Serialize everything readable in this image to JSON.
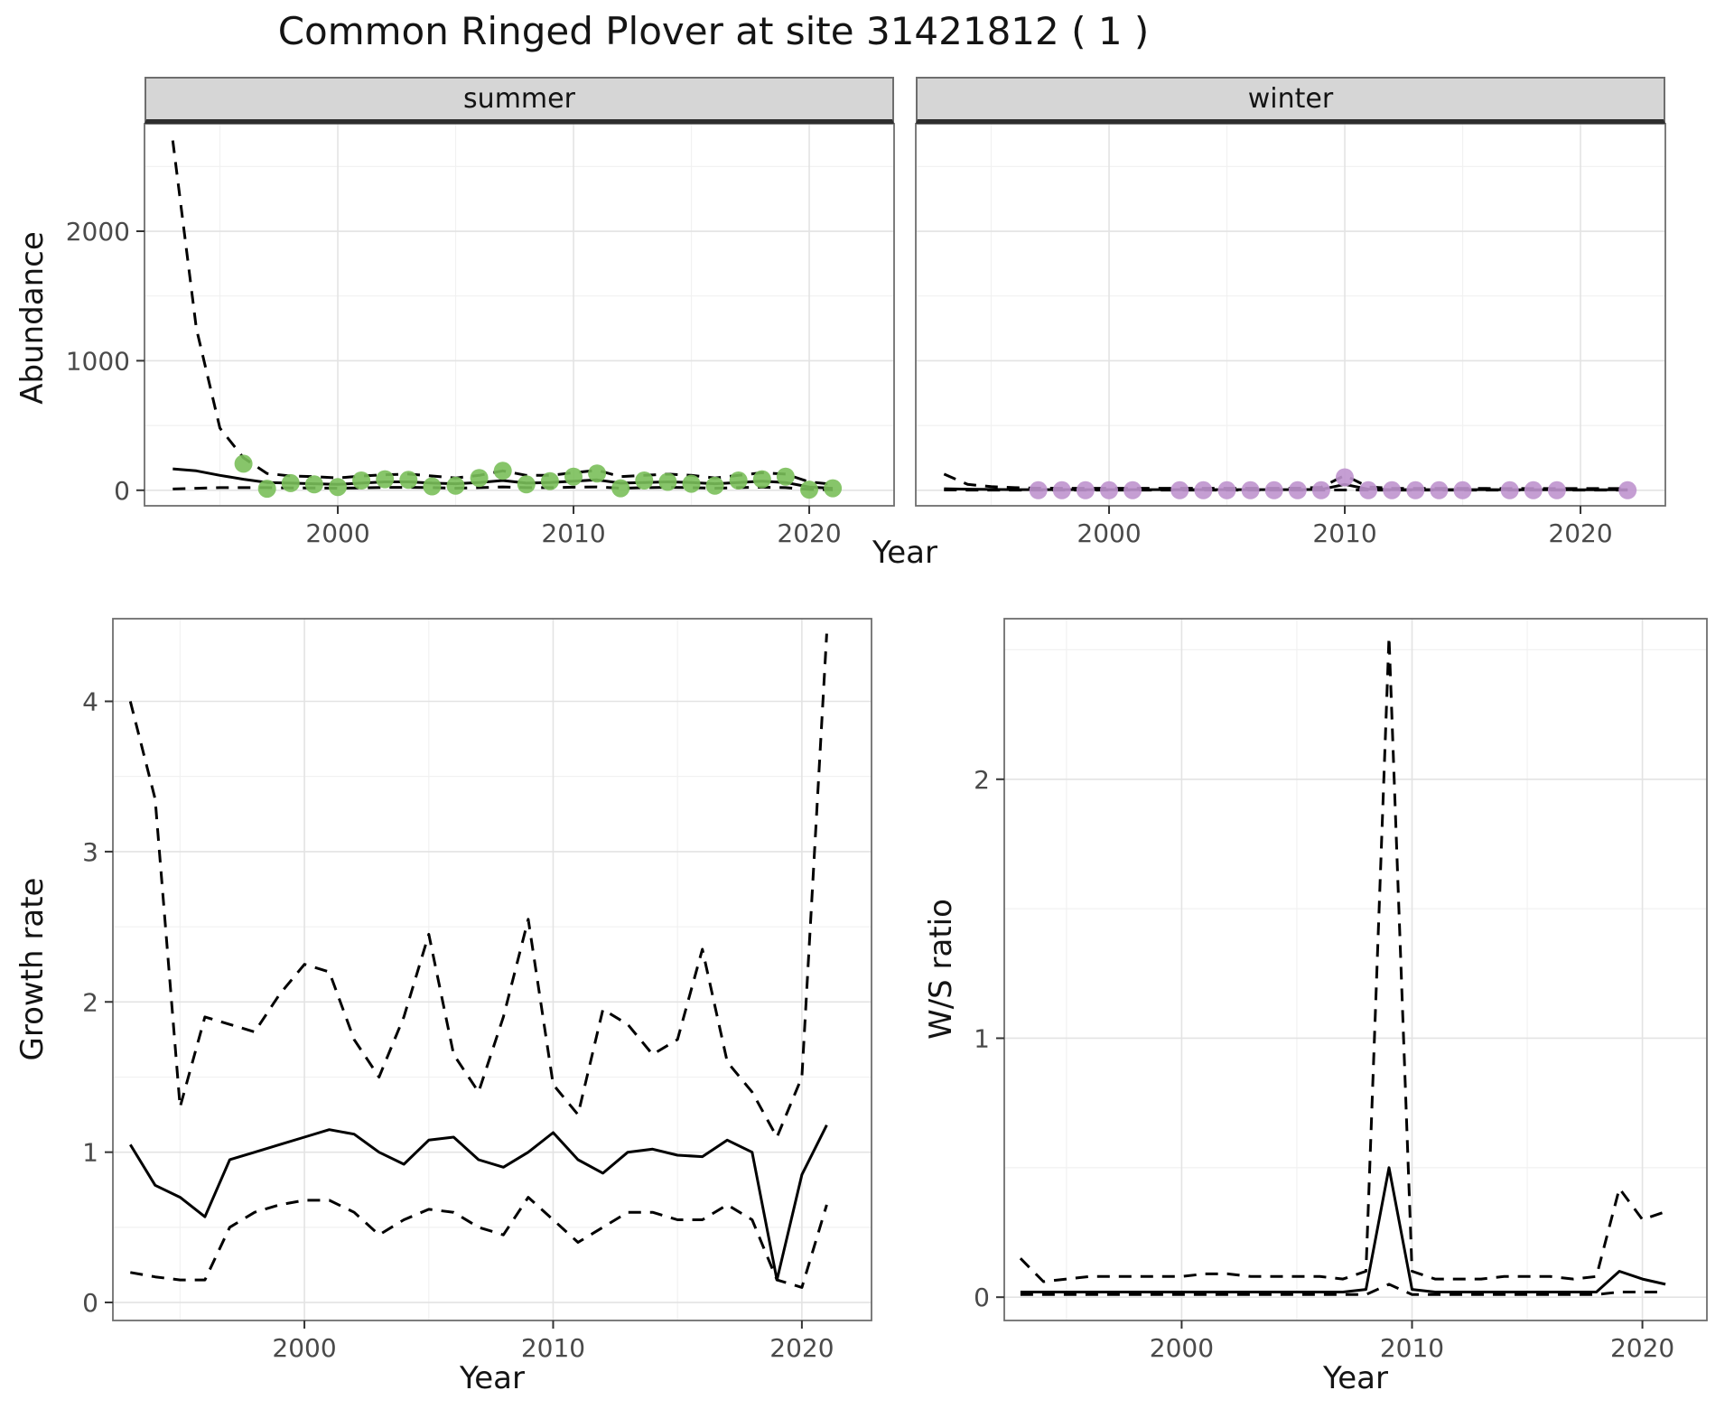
{
  "title": "Common Ringed Plover at site 31421812 ( 1 )",
  "axes": {
    "top_x_label": "Year",
    "top_y_label": "Abundance",
    "growth_x_label": "Year",
    "growth_y_label": "Growth rate",
    "ws_x_label": "Year",
    "ws_y_label": "W/S ratio"
  },
  "facets": {
    "summer": "summer",
    "winter": "winter"
  },
  "colors": {
    "line": "#000000",
    "summer_points": "#7abf5a",
    "winter_points": "#bf94ce",
    "grid_major": "#e3e3e3",
    "grid_minor": "#f1f1f1",
    "panel_border": "#6e6e6e",
    "tick": "#333333",
    "tick_label": "#4a4a4a",
    "strip_background": "#d6d6d6"
  },
  "chart_data": [
    {
      "id": "abundance-summer",
      "type": "line",
      "facet": "summer",
      "xlim": [
        1991.8,
        2023.6
      ],
      "ylim": [
        -120,
        2830
      ],
      "xticks": [
        2000,
        2010,
        2020
      ],
      "yticks": [
        0,
        1000,
        2000
      ],
      "x_minor": [
        1995,
        2005,
        2015
      ],
      "y_minor": [
        500,
        1500,
        2500
      ],
      "series": [
        {
          "name": "ci-upper",
          "style": "dashed",
          "x": [
            1993,
            1994,
            1995,
            1996,
            1997,
            1998,
            1999,
            2000,
            2001,
            2002,
            2003,
            2004,
            2005,
            2006,
            2007,
            2008,
            2009,
            2010,
            2011,
            2012,
            2013,
            2014,
            2015,
            2016,
            2017,
            2018,
            2019,
            2020,
            2021
          ],
          "y": [
            2700,
            1250,
            480,
            250,
            130,
            110,
            105,
            95,
            110,
            120,
            125,
            110,
            95,
            115,
            150,
            115,
            115,
            135,
            155,
            105,
            115,
            125,
            115,
            95,
            115,
            135,
            125,
            65,
            45
          ]
        },
        {
          "name": "ci-lower",
          "style": "dashed",
          "x": [
            1993,
            1994,
            1995,
            1996,
            1997,
            1998,
            1999,
            2000,
            2001,
            2002,
            2003,
            2004,
            2005,
            2006,
            2007,
            2008,
            2009,
            2010,
            2011,
            2012,
            2013,
            2014,
            2015,
            2016,
            2017,
            2018,
            2019,
            2020,
            2021
          ],
          "y": [
            10,
            15,
            20,
            20,
            20,
            18,
            18,
            16,
            18,
            22,
            22,
            20,
            16,
            20,
            26,
            20,
            20,
            24,
            26,
            16,
            20,
            22,
            20,
            16,
            20,
            24,
            20,
            6,
            4
          ]
        },
        {
          "name": "median",
          "style": "solid",
          "x": [
            1993,
            1994,
            1995,
            1996,
            1997,
            1998,
            1999,
            2000,
            2001,
            2002,
            2003,
            2004,
            2005,
            2006,
            2007,
            2008,
            2009,
            2010,
            2011,
            2012,
            2013,
            2014,
            2015,
            2016,
            2017,
            2018,
            2019,
            2020,
            2021
          ],
          "y": [
            165,
            150,
            115,
            85,
            60,
            55,
            50,
            45,
            55,
            65,
            65,
            55,
            50,
            60,
            75,
            55,
            60,
            70,
            80,
            55,
            60,
            65,
            60,
            50,
            60,
            70,
            60,
            25,
            15
          ]
        },
        {
          "name": "observed",
          "style": "points",
          "color": "#7abf5a",
          "x": [
            1996,
            1997,
            1998,
            1999,
            2000,
            2001,
            2002,
            2003,
            2004,
            2005,
            2006,
            2007,
            2008,
            2009,
            2010,
            2011,
            2012,
            2013,
            2014,
            2015,
            2016,
            2017,
            2018,
            2019,
            2020,
            2021
          ],
          "y": [
            205,
            12,
            55,
            45,
            25,
            75,
            85,
            80,
            30,
            35,
            95,
            150,
            45,
            70,
            105,
            130,
            15,
            75,
            65,
            50,
            35,
            75,
            85,
            105,
            5,
            15
          ]
        }
      ]
    },
    {
      "id": "abundance-winter",
      "type": "line",
      "facet": "winter",
      "xlim": [
        1991.8,
        2023.6
      ],
      "ylim": [
        -120,
        2830
      ],
      "xticks": [
        2000,
        2010,
        2020
      ],
      "yticks": [
        0,
        1000,
        2000
      ],
      "x_minor": [
        1995,
        2005,
        2015
      ],
      "y_minor": [
        500,
        1500,
        2500
      ],
      "series": [
        {
          "name": "ci-upper",
          "style": "dashed",
          "x": [
            1993,
            1994,
            1995,
            1996,
            1997,
            1998,
            1999,
            2000,
            2001,
            2002,
            2003,
            2004,
            2005,
            2006,
            2007,
            2008,
            2009,
            2010,
            2011,
            2012,
            2013,
            2014,
            2015,
            2016,
            2017,
            2018,
            2019,
            2020,
            2021,
            2022
          ],
          "y": [
            125,
            45,
            28,
            20,
            16,
            15,
            15,
            15,
            15,
            15,
            15,
            15,
            15,
            15,
            15,
            16,
            22,
            115,
            26,
            15,
            14,
            14,
            14,
            14,
            13,
            13,
            13,
            13,
            13,
            13
          ]
        },
        {
          "name": "ci-lower",
          "style": "dashed",
          "x": [
            1993,
            1994,
            1995,
            1996,
            1997,
            1998,
            1999,
            2000,
            2001,
            2002,
            2003,
            2004,
            2005,
            2006,
            2007,
            2008,
            2009,
            2010,
            2011,
            2012,
            2013,
            2014,
            2015,
            2016,
            2017,
            2018,
            2019,
            2020,
            2021,
            2022
          ],
          "y": [
            2,
            1,
            1,
            1,
            1,
            1,
            1,
            1,
            1,
            1,
            1,
            1,
            1,
            1,
            1,
            1,
            1,
            2,
            1,
            1,
            1,
            1,
            1,
            1,
            1,
            1,
            1,
            1,
            1,
            1
          ]
        },
        {
          "name": "median",
          "style": "solid",
          "x": [
            1993,
            1994,
            1995,
            1996,
            1997,
            1998,
            1999,
            2000,
            2001,
            2002,
            2003,
            2004,
            2005,
            2006,
            2007,
            2008,
            2009,
            2010,
            2011,
            2012,
            2013,
            2014,
            2015,
            2016,
            2017,
            2018,
            2019,
            2020,
            2021,
            2022
          ],
          "y": [
            12,
            8,
            6,
            5,
            5,
            5,
            5,
            5,
            5,
            5,
            5,
            5,
            5,
            5,
            5,
            5,
            6,
            45,
            8,
            5,
            5,
            5,
            5,
            5,
            4,
            4,
            4,
            4,
            4,
            4
          ]
        },
        {
          "name": "observed",
          "style": "points",
          "color": "#bf94ce",
          "x": [
            1997,
            1998,
            1999,
            2000,
            2001,
            2003,
            2004,
            2005,
            2006,
            2007,
            2008,
            2009,
            2010,
            2011,
            2012,
            2013,
            2014,
            2015,
            2017,
            2018,
            2019,
            2022
          ],
          "y": [
            0,
            0,
            0,
            0,
            0,
            0,
            0,
            0,
            0,
            0,
            0,
            0,
            100,
            0,
            0,
            0,
            0,
            0,
            0,
            0,
            0,
            0
          ]
        }
      ]
    },
    {
      "id": "growth-rate",
      "type": "line",
      "facet": null,
      "xlim": [
        1992.3,
        2022.8
      ],
      "ylim": [
        -0.12,
        4.55
      ],
      "xticks": [
        2000,
        2010,
        2020
      ],
      "yticks": [
        0,
        1,
        2,
        3,
        4
      ],
      "x_minor": [
        1995,
        2005,
        2015
      ],
      "y_minor": [
        0.5,
        1.5,
        2.5,
        3.5
      ],
      "series": [
        {
          "name": "ci-upper",
          "style": "dashed",
          "x": [
            1993,
            1994,
            1995,
            1996,
            1997,
            1998,
            1999,
            2000,
            2001,
            2002,
            2003,
            2004,
            2005,
            2006,
            2007,
            2008,
            2009,
            2010,
            2011,
            2012,
            2013,
            2014,
            2015,
            2016,
            2017,
            2018,
            2019,
            2020,
            2021
          ],
          "y": [
            4.0,
            3.35,
            1.3,
            1.9,
            1.85,
            1.8,
            2.05,
            2.25,
            2.2,
            1.75,
            1.5,
            1.9,
            2.45,
            1.65,
            1.4,
            1.9,
            2.55,
            1.45,
            1.25,
            1.95,
            1.85,
            1.65,
            1.75,
            2.35,
            1.6,
            1.4,
            1.1,
            1.5,
            4.45
          ]
        },
        {
          "name": "ci-lower",
          "style": "dashed",
          "x": [
            1993,
            1994,
            1995,
            1996,
            1997,
            1998,
            1999,
            2000,
            2001,
            2002,
            2003,
            2004,
            2005,
            2006,
            2007,
            2008,
            2009,
            2010,
            2011,
            2012,
            2013,
            2014,
            2015,
            2016,
            2017,
            2018,
            2019,
            2020,
            2021
          ],
          "y": [
            0.2,
            0.17,
            0.15,
            0.15,
            0.5,
            0.6,
            0.65,
            0.68,
            0.68,
            0.6,
            0.45,
            0.55,
            0.62,
            0.6,
            0.5,
            0.45,
            0.7,
            0.55,
            0.4,
            0.5,
            0.6,
            0.6,
            0.55,
            0.55,
            0.65,
            0.55,
            0.15,
            0.1,
            0.65
          ]
        },
        {
          "name": "median",
          "style": "solid",
          "x": [
            1993,
            1994,
            1995,
            1996,
            1997,
            1998,
            1999,
            2000,
            2001,
            2002,
            2003,
            2004,
            2005,
            2006,
            2007,
            2008,
            2009,
            2010,
            2011,
            2012,
            2013,
            2014,
            2015,
            2016,
            2017,
            2018,
            2019,
            2020,
            2021
          ],
          "y": [
            1.05,
            0.78,
            0.7,
            0.57,
            0.95,
            1.0,
            1.05,
            1.1,
            1.15,
            1.12,
            1.0,
            0.92,
            1.08,
            1.1,
            0.95,
            0.9,
            1.0,
            1.13,
            0.95,
            0.86,
            1.0,
            1.02,
            0.98,
            0.97,
            1.08,
            1.0,
            0.15,
            0.85,
            1.18
          ]
        }
      ]
    },
    {
      "id": "ws-ratio",
      "type": "line",
      "facet": null,
      "xlim": [
        1992.3,
        2022.8
      ],
      "ylim": [
        -0.09,
        2.62
      ],
      "xticks": [
        2000,
        2010,
        2020
      ],
      "yticks": [
        0,
        1,
        2
      ],
      "x_minor": [
        1995,
        2005,
        2015
      ],
      "y_minor": [
        0.5,
        1.5,
        2.5
      ],
      "series": [
        {
          "name": "ci-upper",
          "style": "dashed",
          "x": [
            1993,
            1994,
            1995,
            1996,
            1997,
            1998,
            1999,
            2000,
            2001,
            2002,
            2003,
            2004,
            2005,
            2006,
            2007,
            2008,
            2009,
            2010,
            2011,
            2012,
            2013,
            2014,
            2015,
            2016,
            2017,
            2018,
            2019,
            2020,
            2021
          ],
          "y": [
            0.15,
            0.06,
            0.07,
            0.08,
            0.08,
            0.08,
            0.08,
            0.08,
            0.09,
            0.09,
            0.08,
            0.08,
            0.08,
            0.08,
            0.07,
            0.1,
            2.55,
            0.1,
            0.07,
            0.07,
            0.07,
            0.08,
            0.08,
            0.08,
            0.07,
            0.08,
            0.42,
            0.3,
            0.33
          ]
        },
        {
          "name": "ci-lower",
          "style": "dashed",
          "x": [
            1993,
            1994,
            1995,
            1996,
            1997,
            1998,
            1999,
            2000,
            2001,
            2002,
            2003,
            2004,
            2005,
            2006,
            2007,
            2008,
            2009,
            2010,
            2011,
            2012,
            2013,
            2014,
            2015,
            2016,
            2017,
            2018,
            2019,
            2020,
            2021
          ],
          "y": [
            0.01,
            0.01,
            0.01,
            0.01,
            0.01,
            0.01,
            0.01,
            0.01,
            0.01,
            0.01,
            0.01,
            0.01,
            0.01,
            0.01,
            0.01,
            0.01,
            0.05,
            0.01,
            0.01,
            0.01,
            0.01,
            0.01,
            0.01,
            0.01,
            0.01,
            0.01,
            0.02,
            0.02,
            0.02
          ]
        },
        {
          "name": "median",
          "style": "solid",
          "x": [
            1993,
            1994,
            1995,
            1996,
            1997,
            1998,
            1999,
            2000,
            2001,
            2002,
            2003,
            2004,
            2005,
            2006,
            2007,
            2008,
            2009,
            2010,
            2011,
            2012,
            2013,
            2014,
            2015,
            2016,
            2017,
            2018,
            2019,
            2020,
            2021
          ],
          "y": [
            0.02,
            0.02,
            0.02,
            0.02,
            0.02,
            0.02,
            0.02,
            0.02,
            0.02,
            0.02,
            0.02,
            0.02,
            0.02,
            0.02,
            0.02,
            0.03,
            0.5,
            0.03,
            0.02,
            0.02,
            0.02,
            0.02,
            0.02,
            0.02,
            0.02,
            0.02,
            0.1,
            0.07,
            0.05
          ]
        }
      ]
    }
  ]
}
